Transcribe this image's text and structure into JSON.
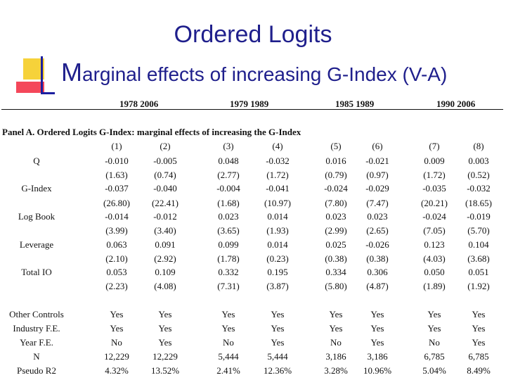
{
  "slide": {
    "title": "Ordered Logits",
    "subtitle_first": "M",
    "subtitle_rest": "arginal effects of increasing G-Index (V-A)"
  },
  "table": {
    "periods": [
      "1978 2006",
      "1979 1989",
      "1985 1989",
      "1990 2006"
    ],
    "panel_title": "Panel A. Ordered Logits G-Index: marginal effects of increasing the G-Index",
    "columns": [
      "(1)",
      "(2)",
      "(3)",
      "(4)",
      "(5)",
      "(6)",
      "(7)",
      "(8)"
    ],
    "rows": [
      {
        "label": "Q",
        "values": [
          "-0.010",
          "-0.005",
          "0.048",
          "-0.032",
          "0.016",
          "-0.021",
          "0.009",
          "0.003"
        ]
      },
      {
        "label": "",
        "values": [
          "(1.63)",
          "(0.74)",
          "(2.77)",
          "(1.72)",
          "(0.79)",
          "(0.97)",
          "(1.72)",
          "(0.52)"
        ]
      },
      {
        "label": "G-Index",
        "values": [
          "-0.037",
          "-0.040",
          "-0.004",
          "-0.041",
          "-0.024",
          "-0.029",
          "-0.035",
          "-0.032"
        ]
      },
      {
        "label": "",
        "values": [
          "(26.80)",
          "(22.41)",
          "(1.68)",
          "(10.97)",
          "(7.80)",
          "(7.47)",
          "(20.21)",
          "(18.65)"
        ]
      },
      {
        "label": "Log Book",
        "values": [
          "-0.014",
          "-0.012",
          "0.023",
          "0.014",
          "0.023",
          "0.023",
          "-0.024",
          "-0.019"
        ]
      },
      {
        "label": "",
        "values": [
          "(3.99)",
          "(3.40)",
          "(3.65)",
          "(1.93)",
          "(2.99)",
          "(2.65)",
          "(7.05)",
          "(5.70)"
        ]
      },
      {
        "label": "Leverage",
        "values": [
          "0.063",
          "0.091",
          "0.099",
          "0.014",
          "0.025",
          "-0.026",
          "0.123",
          "0.104"
        ]
      },
      {
        "label": "",
        "values": [
          "(2.10)",
          "(2.92)",
          "(1.78)",
          "(0.23)",
          "(0.38)",
          "(0.38)",
          "(4.03)",
          "(3.68)"
        ]
      },
      {
        "label": "Total IO",
        "values": [
          "0.053",
          "0.109",
          "0.332",
          "0.195",
          "0.334",
          "0.306",
          "0.050",
          "0.051"
        ]
      },
      {
        "label": "",
        "values": [
          "(2.23)",
          "(4.08)",
          "(7.31)",
          "(3.87)",
          "(5.80)",
          "(4.87)",
          "(1.89)",
          "(1.92)"
        ]
      },
      {
        "label": "Other Controls",
        "values": [
          "Yes",
          "Yes",
          "Yes",
          "Yes",
          "Yes",
          "Yes",
          "Yes",
          "Yes"
        ]
      },
      {
        "label": "Industry F.E.",
        "values": [
          "Yes",
          "Yes",
          "Yes",
          "Yes",
          "Yes",
          "Yes",
          "Yes",
          "Yes"
        ]
      },
      {
        "label": "Year F.E.",
        "values": [
          "No",
          "Yes",
          "No",
          "Yes",
          "No",
          "Yes",
          "No",
          "Yes"
        ]
      },
      {
        "label": "N",
        "values": [
          "12,229",
          "12,229",
          "5,444",
          "5,444",
          "3,186",
          "3,186",
          "6,785",
          "6,785"
        ]
      },
      {
        "label": "Pseudo R2",
        "values": [
          "4.32%",
          "13.52%",
          "2.41%",
          "12.36%",
          "3.28%",
          "10.96%",
          "5.04%",
          "8.49%"
        ]
      }
    ]
  }
}
